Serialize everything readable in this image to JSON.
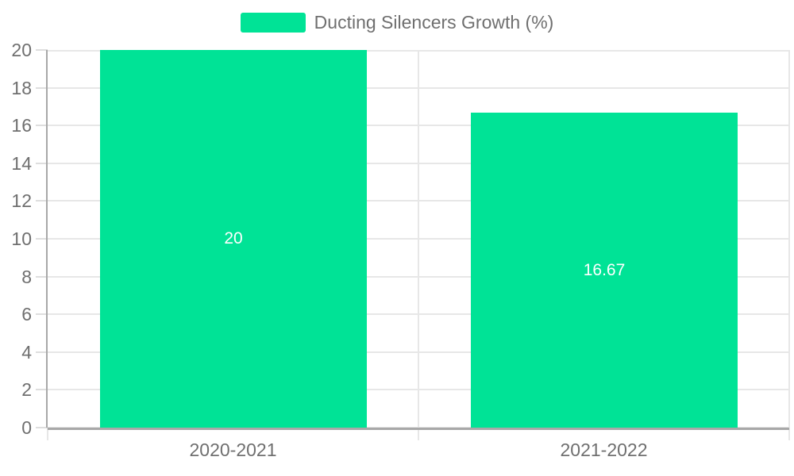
{
  "chart_data": {
    "type": "bar",
    "title": "",
    "categories": [
      "2020-2021",
      "2021-2022"
    ],
    "series": [
      {
        "name": "Ducting Silencers Growth (%)",
        "values": [
          20,
          16.67
        ]
      }
    ],
    "data_labels": [
      "20",
      "16.67"
    ],
    "ylim": [
      0,
      20
    ],
    "yticks": [
      0,
      2,
      4,
      6,
      8,
      10,
      12,
      14,
      16,
      18,
      20
    ],
    "grid": true,
    "legend_position": "top-center",
    "colors": {
      "bar": "#00E396",
      "grid": "#e7e7e7",
      "tick": "#dedede",
      "axis": "#a8a8a8",
      "label": "#6f6f6f",
      "data_label": "#ffffff",
      "background": "#ffffff"
    }
  }
}
